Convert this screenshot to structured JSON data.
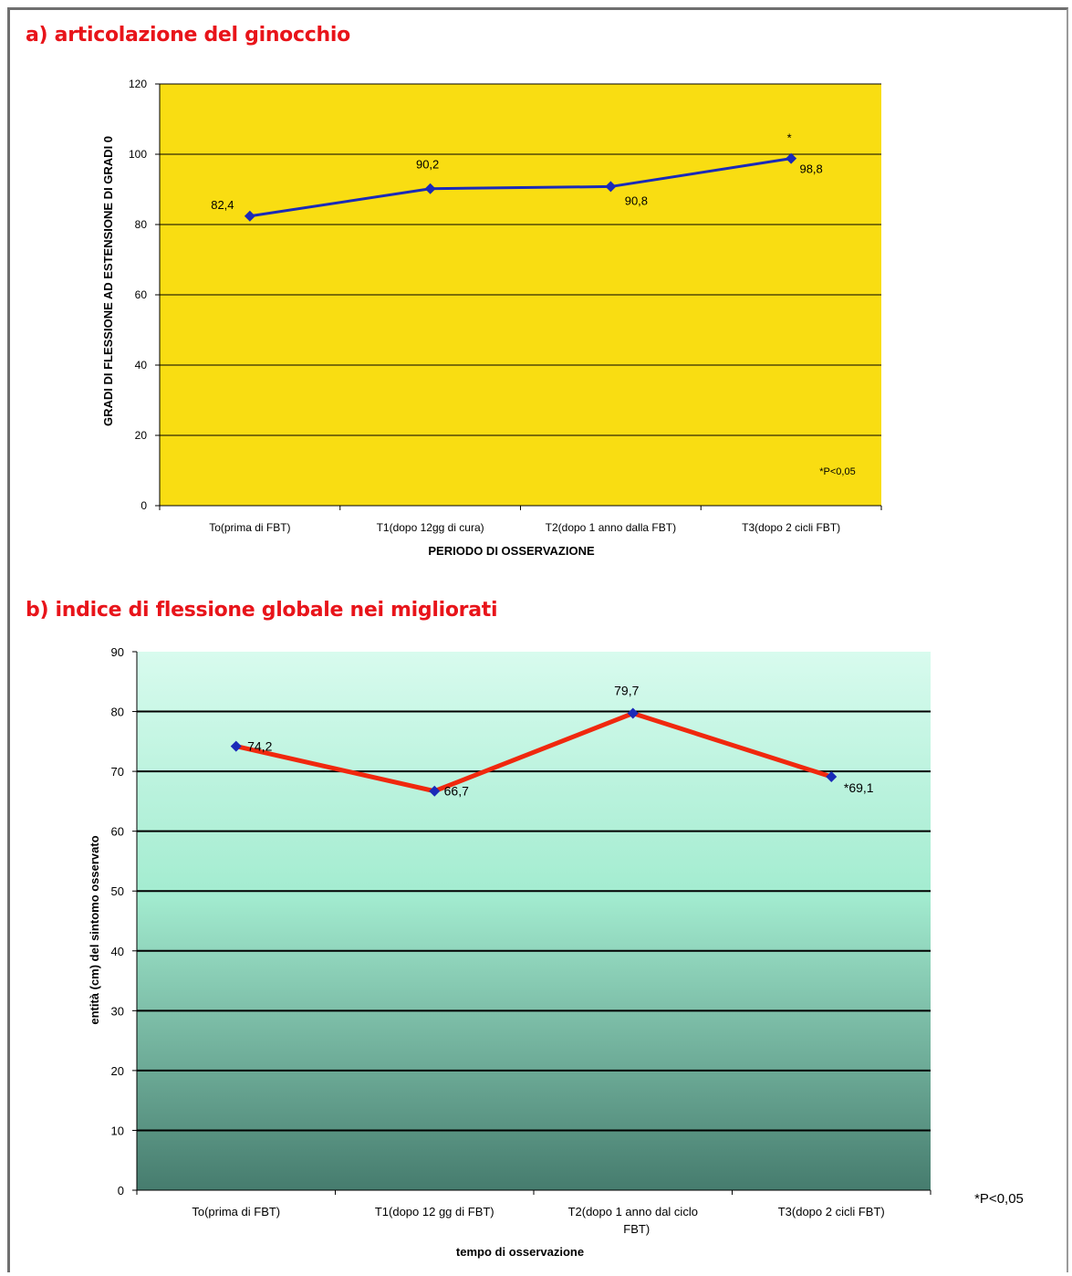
{
  "chart_data": [
    {
      "type": "line",
      "title": "a) articolazione del ginocchio",
      "ylabel": "GRADI DI FLESSIONE AD ESTENSIONE DI GRADI 0",
      "xlabel": "PERIODO DI OSSERVAZIONE",
      "categories": [
        "To(prima di FBT)",
        "T1(dopo 12gg di cura)",
        "T2(dopo 1 anno dalla FBT)",
        "T3(dopo 2 cicli FBT)"
      ],
      "series": [
        {
          "values": [
            82.4,
            90.2,
            90.8,
            98.8
          ]
        }
      ],
      "data_labels": [
        "82,4",
        "90,2",
        "90,8",
        "98,8"
      ],
      "significance_marker": "*",
      "yticks": [
        "0",
        "20",
        "40",
        "60",
        "80",
        "100",
        "120"
      ],
      "ylim": [
        0,
        120
      ],
      "annotation": "*P<0,05",
      "colors": {
        "background": "#f9dd12",
        "line": "#1a2ab8",
        "marker": "#1a2ab8"
      },
      "grid": true,
      "legend": "none"
    },
    {
      "type": "line",
      "title": "b) indice di flessione globale nei migliorati",
      "ylabel": "entità (cm) del sintomo osservato",
      "xlabel": "tempo di osservazione",
      "categories": [
        "To(prima di FBT)",
        "T1(dopo 12 gg di FBT)",
        "T2(dopo 1 anno dal ciclo FBT)",
        "T3(dopo 2 cicli FBT)"
      ],
      "category_lines": [
        [
          "To(prima di FBT)"
        ],
        [
          "T1(dopo 12 gg di FBT)"
        ],
        [
          "T2(dopo 1 anno dal ciclo",
          "FBT)"
        ],
        [
          "T3(dopo 2 cicli FBT)"
        ]
      ],
      "series": [
        {
          "values": [
            74.2,
            66.7,
            79.7,
            69.1
          ]
        }
      ],
      "data_labels": [
        "74,2",
        "66,7",
        "79,7",
        "*69,1"
      ],
      "yticks": [
        "0",
        "10",
        "20",
        "30",
        "40",
        "50",
        "60",
        "70",
        "80",
        "90"
      ],
      "ylim": [
        0,
        90
      ],
      "annotation": "*P<0,05",
      "colors": {
        "background_top": "#d8fbee",
        "background_mid": "#a3ecd0",
        "background_bottom": "#467c6e",
        "line": "#f0280e",
        "marker": "#1a2ab8"
      },
      "grid": true,
      "legend": "none"
    }
  ]
}
